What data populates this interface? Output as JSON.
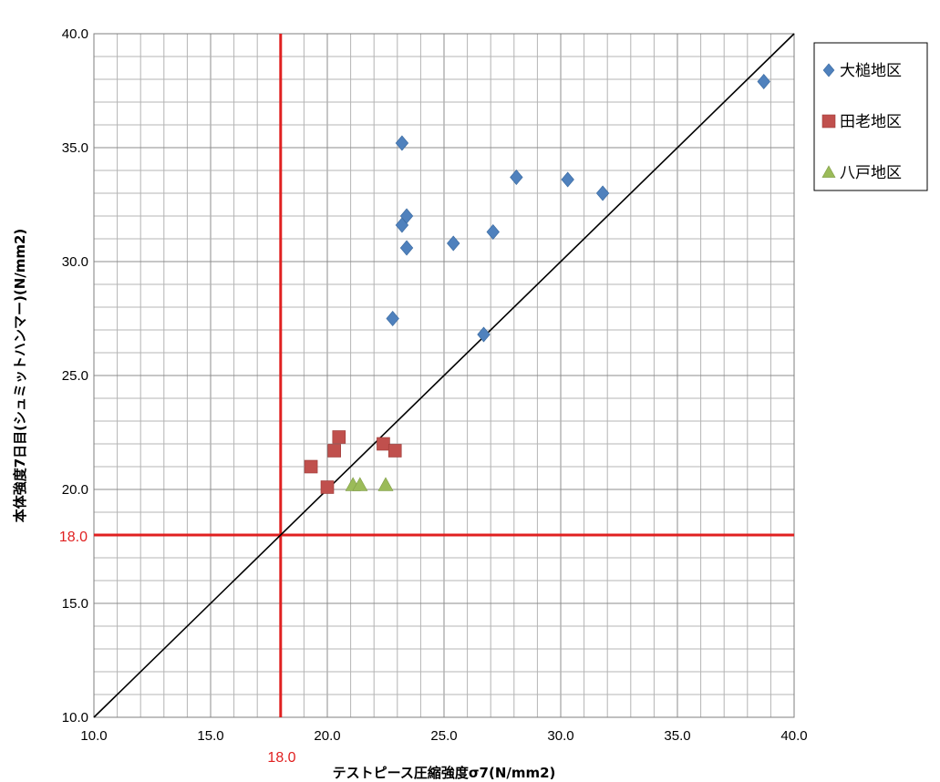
{
  "chart_data": {
    "type": "scatter",
    "title": "",
    "xlabel": "テストピース圧縮強度σ7(N/mm2)",
    "ylabel": "本体強度7日目(シュミットハンマー)(N/mm2)",
    "xlim": [
      10.0,
      40.0
    ],
    "ylim": [
      10.0,
      40.0
    ],
    "x_ticks": [
      "10.0",
      "15.0",
      "20.0",
      "25.0",
      "30.0",
      "35.0",
      "40.0"
    ],
    "y_ticks": [
      "10.0",
      "15.0",
      "20.0",
      "25.0",
      "30.0",
      "35.0",
      "40.0"
    ],
    "minor_grid_step": 1,
    "major_grid_step": 5,
    "grid": true,
    "legend_position": "right",
    "reference_lines": {
      "x": 18.0,
      "y": 18.0,
      "x_label": "18.0",
      "y_label": "18.0",
      "color": "#e02020"
    },
    "diagonal": {
      "from": [
        10.0,
        10.0
      ],
      "to": [
        40.0,
        40.0
      ],
      "color": "#000000"
    },
    "series": [
      {
        "name": "大槌地区",
        "marker": "diamond",
        "color": "#4f81bd",
        "points": [
          [
            23.2,
            35.2
          ],
          [
            23.2,
            31.6
          ],
          [
            23.4,
            32.0
          ],
          [
            23.4,
            30.6
          ],
          [
            22.8,
            27.5
          ],
          [
            25.4,
            30.8
          ],
          [
            27.1,
            31.3
          ],
          [
            28.1,
            33.7
          ],
          [
            30.3,
            33.6
          ],
          [
            31.8,
            33.0
          ],
          [
            26.7,
            26.8
          ],
          [
            38.7,
            37.9
          ]
        ]
      },
      {
        "name": "田老地区",
        "marker": "square",
        "color": "#c0504d",
        "points": [
          [
            19.3,
            21.0
          ],
          [
            20.0,
            20.1
          ],
          [
            20.3,
            21.7
          ],
          [
            20.5,
            22.3
          ],
          [
            22.4,
            22.0
          ],
          [
            22.9,
            21.7
          ]
        ]
      },
      {
        "name": "八戸地区",
        "marker": "triangle",
        "color": "#9bbb59",
        "points": [
          [
            21.1,
            20.2
          ],
          [
            21.4,
            20.2
          ],
          [
            22.5,
            20.2
          ]
        ]
      }
    ]
  }
}
